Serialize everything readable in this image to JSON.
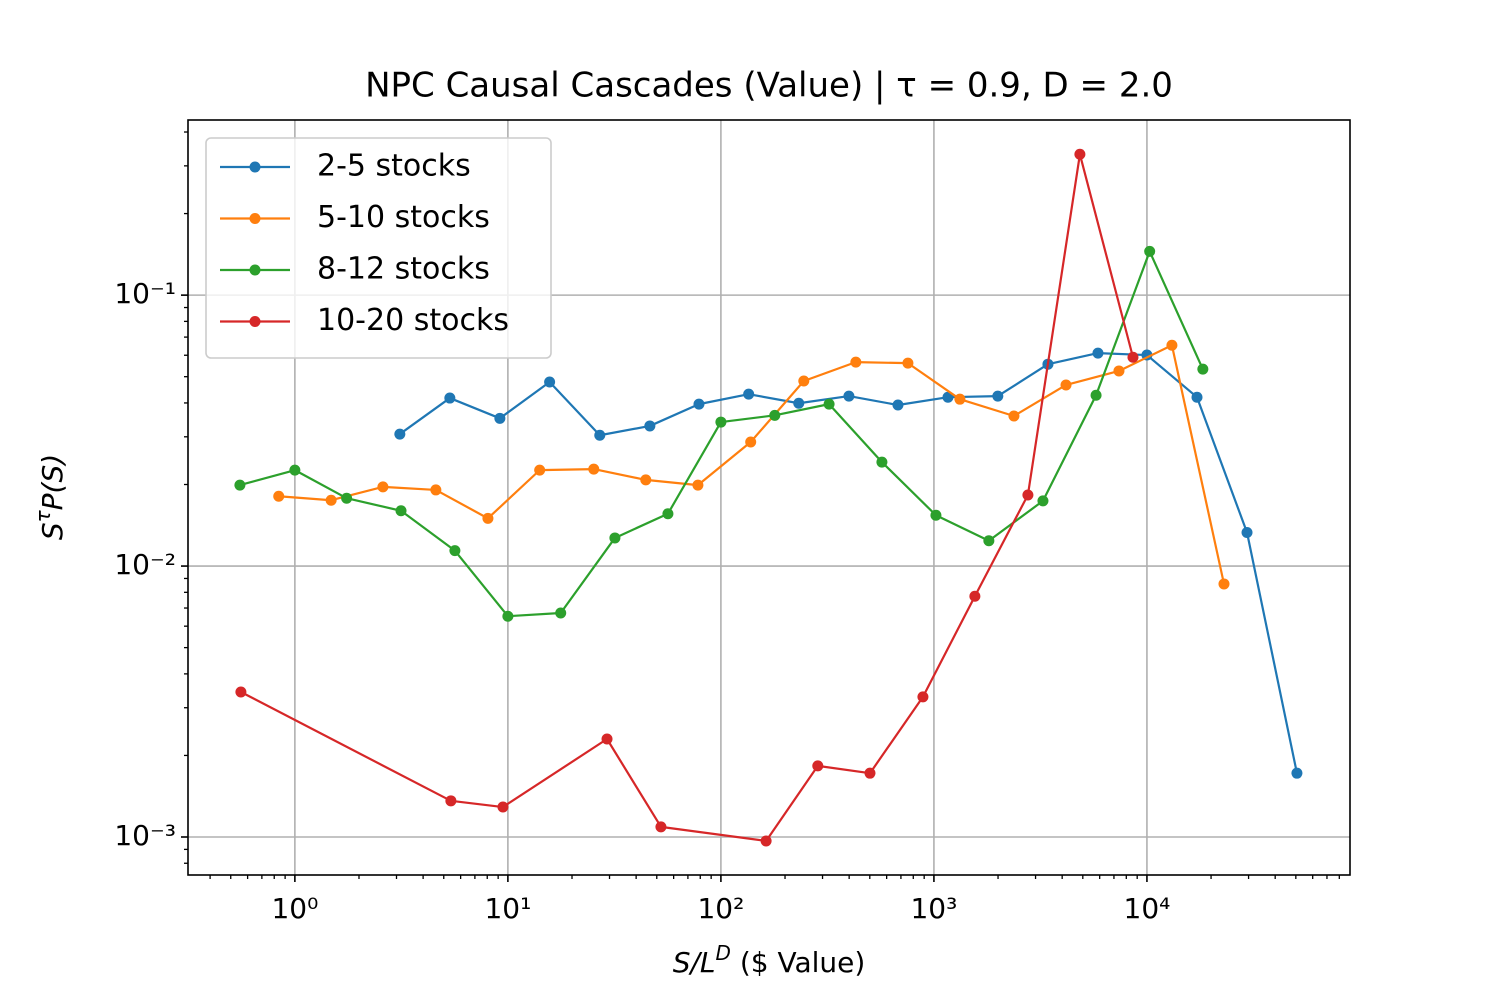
{
  "chart_data": {
    "type": "line",
    "title": "NPC Causal Cascades (Value) | τ = 0.9, D = 2.0",
    "xlabel": [
      "S/L",
      "D",
      " ($ Value)"
    ],
    "ylabel": [
      "S",
      "τ",
      "P(S)"
    ],
    "xscale": "log",
    "yscale": "log",
    "grid": true,
    "legend": "upper left",
    "xlim": [
      0.315,
      89800
    ],
    "ylim": [
      0.000724,
      0.443
    ],
    "xticks": [
      {
        "value": 1,
        "label": "10⁰"
      },
      {
        "value": 10,
        "label": "10¹"
      },
      {
        "value": 100,
        "label": "10²"
      },
      {
        "value": 1000,
        "label": "10³"
      },
      {
        "value": 10000,
        "label": "10⁴"
      }
    ],
    "yticks": [
      {
        "value": 0.001,
        "label": "10⁻³"
      },
      {
        "value": 0.01,
        "label": "10⁻²"
      },
      {
        "value": 0.1,
        "label": "10⁻¹"
      }
    ],
    "xminorticks": [
      0.4,
      0.5,
      0.6,
      0.7,
      0.8,
      0.9,
      2,
      3,
      4,
      5,
      6,
      7,
      8,
      9,
      20,
      30,
      40,
      50,
      60,
      70,
      80,
      90,
      200,
      300,
      400,
      500,
      600,
      700,
      800,
      900,
      2000,
      3000,
      4000,
      5000,
      6000,
      7000,
      8000,
      9000,
      20000,
      30000,
      40000,
      50000,
      60000,
      70000,
      80000
    ],
    "yminorticks": [
      0.0008,
      0.0009,
      0.002,
      0.003,
      0.004,
      0.005,
      0.006,
      0.007,
      0.008,
      0.009,
      0.02,
      0.03,
      0.04,
      0.05,
      0.06,
      0.07,
      0.08,
      0.09,
      0.2,
      0.3,
      0.4
    ],
    "series": [
      {
        "name": "2-5 stocks",
        "color": "#1f77b4",
        "x": [
          3.11,
          5.34,
          9.17,
          15.7,
          27.0,
          46.4,
          78.9,
          135,
          232,
          399,
          678,
          1164,
          1995,
          3430,
          5890,
          10000,
          17180,
          29500,
          50600
        ],
        "values": [
          0.0307,
          0.0417,
          0.0351,
          0.0478,
          0.0304,
          0.0329,
          0.0396,
          0.0431,
          0.0399,
          0.0424,
          0.0393,
          0.042,
          0.0424,
          0.0556,
          0.0611,
          0.0601,
          0.042,
          0.0133,
          0.00172
        ]
      },
      {
        "name": "5-10 stocks",
        "color": "#ff7f0e",
        "x": [
          0.84,
          1.48,
          2.59,
          4.59,
          8.06,
          14.1,
          25.3,
          44.4,
          78.0,
          138,
          245,
          430,
          755,
          1324,
          2375,
          4170,
          7390,
          13100,
          23000
        ],
        "values": [
          0.0181,
          0.0175,
          0.0196,
          0.0191,
          0.015,
          0.0226,
          0.0228,
          0.0208,
          0.0199,
          0.0287,
          0.0482,
          0.0566,
          0.0561,
          0.0413,
          0.0358,
          0.0466,
          0.0525,
          0.0653,
          0.00859
        ]
      },
      {
        "name": "8-12 stocks",
        "color": "#2ca02c",
        "x": [
          0.552,
          1.0,
          1.75,
          3.15,
          5.64,
          10,
          17.7,
          31.8,
          56.4,
          100,
          179,
          322,
          570,
          1022,
          1811,
          3250,
          5770,
          10300,
          18300
        ],
        "values": [
          0.0199,
          0.0226,
          0.0178,
          0.016,
          0.0114,
          0.00653,
          0.00671,
          0.0127,
          0.0156,
          0.034,
          0.036,
          0.0396,
          0.0242,
          0.0154,
          0.0124,
          0.0174,
          0.0427,
          0.145,
          0.0533
        ]
      },
      {
        "name": "10-20 stocks",
        "color": "#d62728",
        "x": [
          0.558,
          5.4,
          9.48,
          29.2,
          52.3,
          163,
          285,
          501,
          888,
          1557,
          2762,
          4845,
          8600
        ],
        "values": [
          0.00343,
          0.00136,
          0.00129,
          0.0023,
          0.00109,
          0.000967,
          0.00183,
          0.00172,
          0.00329,
          0.00774,
          0.0183,
          0.331,
          0.059
        ]
      }
    ]
  }
}
